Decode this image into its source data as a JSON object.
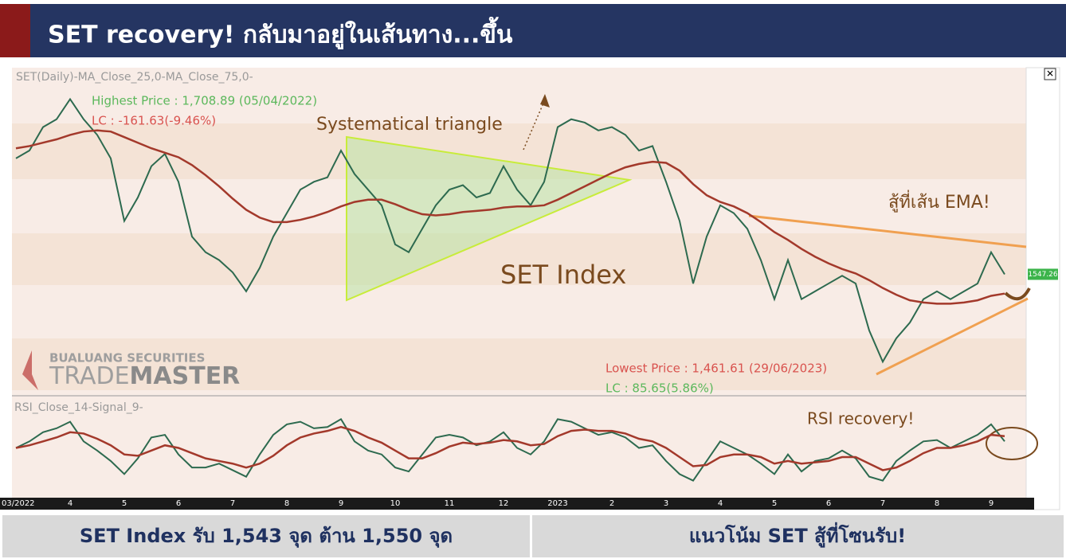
{
  "header": {
    "title": "SET recovery! กลับมาอยู่ในเส้นทาง...ขึ้น"
  },
  "logo": {
    "company": "BUALUANG SECURITIES",
    "brand_a": "TRADE",
    "brand_b": "MASTER"
  },
  "chart_data": [
    {
      "type": "line",
      "legend_text": "SET(Daily)-MA_Close_25,0-MA_Close_75,0-",
      "categories": [
        "03/2022",
        null,
        null,
        null,
        "4",
        null,
        null,
        null,
        "5",
        null,
        null,
        null,
        "6",
        null,
        null,
        null,
        "7",
        null,
        null,
        null,
        "8",
        null,
        null,
        null,
        "9",
        null,
        null,
        null,
        "10",
        null,
        null,
        null,
        "11",
        null,
        null,
        null,
        "12",
        null,
        null,
        null,
        "2023",
        null,
        null,
        null,
        "2",
        null,
        null,
        null,
        "3",
        null,
        null,
        null,
        "4",
        null,
        null,
        null,
        "5",
        null,
        null,
        null,
        "6",
        null,
        null,
        null,
        "7",
        null,
        null,
        null,
        "8",
        null,
        null,
        null,
        "9",
        null
      ],
      "ylim": [
        1440,
        1730
      ],
      "series": [
        {
          "color": "#2d6a4f",
          "values": [
            1651,
            1658,
            1679,
            1686,
            1704,
            1686,
            1672,
            1651,
            1595,
            1616,
            1644,
            1655,
            1630,
            1581,
            1567,
            1560,
            1549,
            1532,
            1553,
            1581,
            1602,
            1623,
            1630,
            1634,
            1658,
            1637,
            1623,
            1609,
            1574,
            1567,
            1588,
            1609,
            1623,
            1627,
            1616,
            1620,
            1644,
            1623,
            1609,
            1630,
            1679,
            1686,
            1683,
            1676,
            1679,
            1672,
            1658,
            1662,
            1630,
            1595,
            1539,
            1581,
            1609,
            1602,
            1588,
            1560,
            1525,
            1560,
            1525,
            1532,
            1539,
            1546,
            1539,
            1497,
            1469,
            1490,
            1504,
            1525,
            1532,
            1525,
            1532,
            1539,
            1567,
            1547.26
          ]
        },
        {
          "color": "#a3392b",
          "values": [
            1660,
            1662,
            1665,
            1668,
            1672,
            1675,
            1676,
            1675,
            1670,
            1665,
            1660,
            1656,
            1652,
            1645,
            1636,
            1626,
            1615,
            1605,
            1598,
            1594,
            1594,
            1596,
            1599,
            1603,
            1608,
            1612,
            1614,
            1614,
            1610,
            1605,
            1601,
            1600,
            1601,
            1603,
            1604,
            1605,
            1607,
            1608,
            1608,
            1609,
            1614,
            1620,
            1626,
            1632,
            1638,
            1643,
            1646,
            1648,
            1647,
            1640,
            1628,
            1618,
            1612,
            1608,
            1602,
            1594,
            1585,
            1578,
            1570,
            1563,
            1557,
            1552,
            1548,
            1542,
            1535,
            1529,
            1524,
            1522,
            1521,
            1521,
            1522,
            1524,
            1528,
            1530
          ]
        }
      ],
      "annotations": [
        "Highest Price : 1,708.89 (05/04/2022)",
        "LC : -161.63(-9.46%)",
        "Systematical triangle",
        "SET Index",
        "สู้ที่เส้น EMA!",
        "Lowest Price : 1,461.61 (29/06/2023)",
        "LC : 85.65(5.86%)"
      ]
    },
    {
      "type": "line",
      "legend_text": "RSI_Close_14-Signal_9-",
      "ylim": [
        15,
        85
      ],
      "series": [
        {
          "color": "#2d6a4f",
          "values": [
            50,
            55,
            62,
            65,
            70,
            55,
            48,
            40,
            30,
            42,
            58,
            60,
            45,
            35,
            35,
            38,
            33,
            28,
            45,
            60,
            68,
            70,
            65,
            66,
            72,
            55,
            48,
            45,
            35,
            32,
            45,
            58,
            60,
            58,
            52,
            55,
            62,
            50,
            45,
            55,
            72,
            70,
            65,
            60,
            62,
            58,
            50,
            52,
            40,
            30,
            25,
            40,
            55,
            50,
            45,
            38,
            30,
            45,
            32,
            40,
            42,
            48,
            42,
            28,
            25,
            40,
            48,
            55,
            56,
            50,
            55,
            60,
            68,
            55
          ]
        },
        {
          "color": "#a3392b",
          "values": [
            50,
            52,
            55,
            58,
            62,
            61,
            57,
            52,
            45,
            44,
            48,
            52,
            50,
            46,
            42,
            40,
            38,
            35,
            38,
            44,
            52,
            58,
            61,
            63,
            66,
            63,
            58,
            54,
            48,
            42,
            42,
            46,
            51,
            54,
            53,
            54,
            56,
            55,
            52,
            53,
            59,
            63,
            64,
            63,
            63,
            61,
            57,
            55,
            50,
            43,
            36,
            37,
            43,
            45,
            45,
            43,
            38,
            40,
            38,
            39,
            40,
            43,
            43,
            38,
            33,
            35,
            40,
            46,
            50,
            50,
            52,
            55,
            60,
            59
          ]
        }
      ],
      "annotations": [
        "RSI recovery!"
      ]
    }
  ],
  "footer": [
    "SET Index รับ 1,543 จุด ต้าน 1,550 จุด",
    "แนวโน้ม SET สู้ที่โซนรับ!"
  ]
}
